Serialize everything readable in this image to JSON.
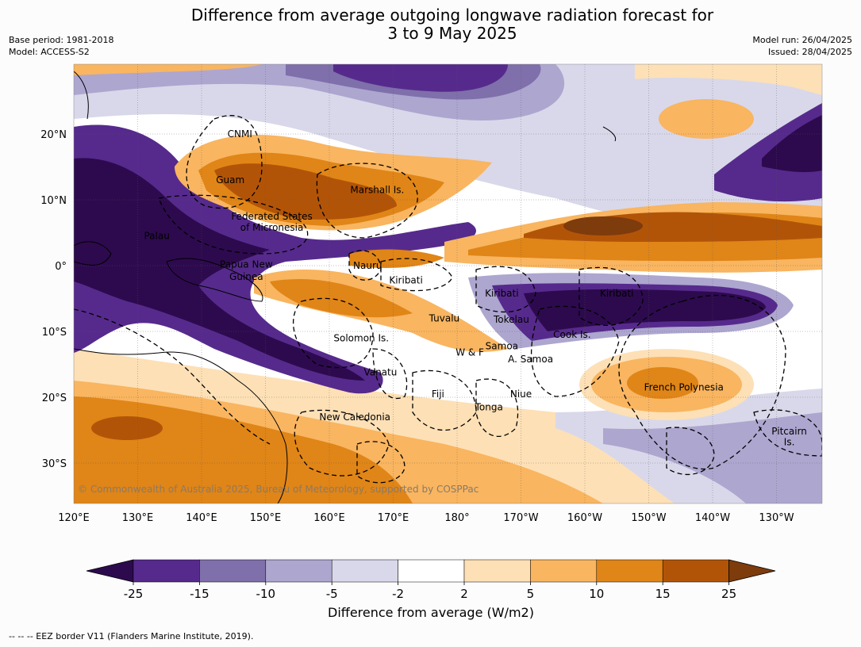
{
  "title": {
    "line1": "Difference from average outgoing longwave radiation forecast for",
    "line2": "3 to 9 May 2025"
  },
  "meta": {
    "base_period": "Base period: 1981-2018",
    "model": "Model: ACCESS-S2",
    "model_run": "Model run: 26/04/2025",
    "issued": "Issued: 28/04/2025"
  },
  "copyright": "© Commonwealth of Australia 2025, Bureau of Meteorology, supported by COSPPac",
  "axes": {
    "lon_ticks": [
      "120°E",
      "130°E",
      "140°E",
      "150°E",
      "160°E",
      "170°E",
      "180°",
      "170°W",
      "160°W",
      "150°W",
      "140°W",
      "130°W"
    ],
    "lat_ticks": [
      "20°N",
      "10°N",
      "0°",
      "10°S",
      "20°S",
      "30°S"
    ]
  },
  "places": [
    {
      "name": "CNMI",
      "lon": 146,
      "lat": 20
    },
    {
      "name": "Guam",
      "lon": 144.5,
      "lat": 13
    },
    {
      "name": "Marshall Is.",
      "lon": 167.5,
      "lat": 11.5
    },
    {
      "name": "Federated States",
      "lon": 151,
      "lat": 7.5
    },
    {
      "name": "of Micronesia",
      "lon": 151,
      "lat": 5.8
    },
    {
      "name": "Palau",
      "lon": 133,
      "lat": 4.5
    },
    {
      "name": "Papua New",
      "lon": 147,
      "lat": 0.2
    },
    {
      "name": "Guinea",
      "lon": 147,
      "lat": -1.7
    },
    {
      "name": "Nauru",
      "lon": 166,
      "lat": 0
    },
    {
      "name": "Kiribati",
      "lon": 172,
      "lat": -2.2
    },
    {
      "name": "Kiribati",
      "lon": -173,
      "lat": -4.2
    },
    {
      "name": "Kiribati",
      "lon": -155,
      "lat": -4.2
    },
    {
      "name": "Tuvalu",
      "lon": 178,
      "lat": -8
    },
    {
      "name": "Tokelau",
      "lon": -171.5,
      "lat": -8.2
    },
    {
      "name": "Cook Is.",
      "lon": -162,
      "lat": -10.5
    },
    {
      "name": "Solomon Is.",
      "lon": 165,
      "lat": -11
    },
    {
      "name": "Samoa",
      "lon": -173,
      "lat": -12.2
    },
    {
      "name": "W & F",
      "lon": -178,
      "lat": -13.2
    },
    {
      "name": "A. Samoa",
      "lon": -168.5,
      "lat": -14.2
    },
    {
      "name": "Vanatu",
      "lon": 168,
      "lat": -16.2
    },
    {
      "name": "French Polynesia",
      "lon": -144.5,
      "lat": -18.5
    },
    {
      "name": "Fiji",
      "lon": 177,
      "lat": -19.5
    },
    {
      "name": "Niue",
      "lon": -170,
      "lat": -19.5
    },
    {
      "name": "Tonga",
      "lon": -175,
      "lat": -21.5
    },
    {
      "name": "New Caledonia",
      "lon": 164,
      "lat": -23
    },
    {
      "name": "Pitcairn",
      "lon": -128,
      "lat": -25.2
    },
    {
      "name": "Is.",
      "lon": -128,
      "lat": -26.8
    }
  ],
  "colorbar": {
    "ticks": [
      "-25",
      "-15",
      "-10",
      "-5",
      "-2",
      "2",
      "5",
      "10",
      "15",
      "25"
    ],
    "colors": [
      "#2d0a4e",
      "#562a8c",
      "#7f6fab",
      "#ada6cf",
      "#d9d8ea",
      "#ffffff",
      "#fde0b6",
      "#f9b560",
      "#e08517",
      "#b25408",
      "#7e3b0c"
    ],
    "label": "Difference from average (W/m2)"
  },
  "footer": "--  --  -- EEZ border V11 (Flanders Marine Institute, 2019)."
}
